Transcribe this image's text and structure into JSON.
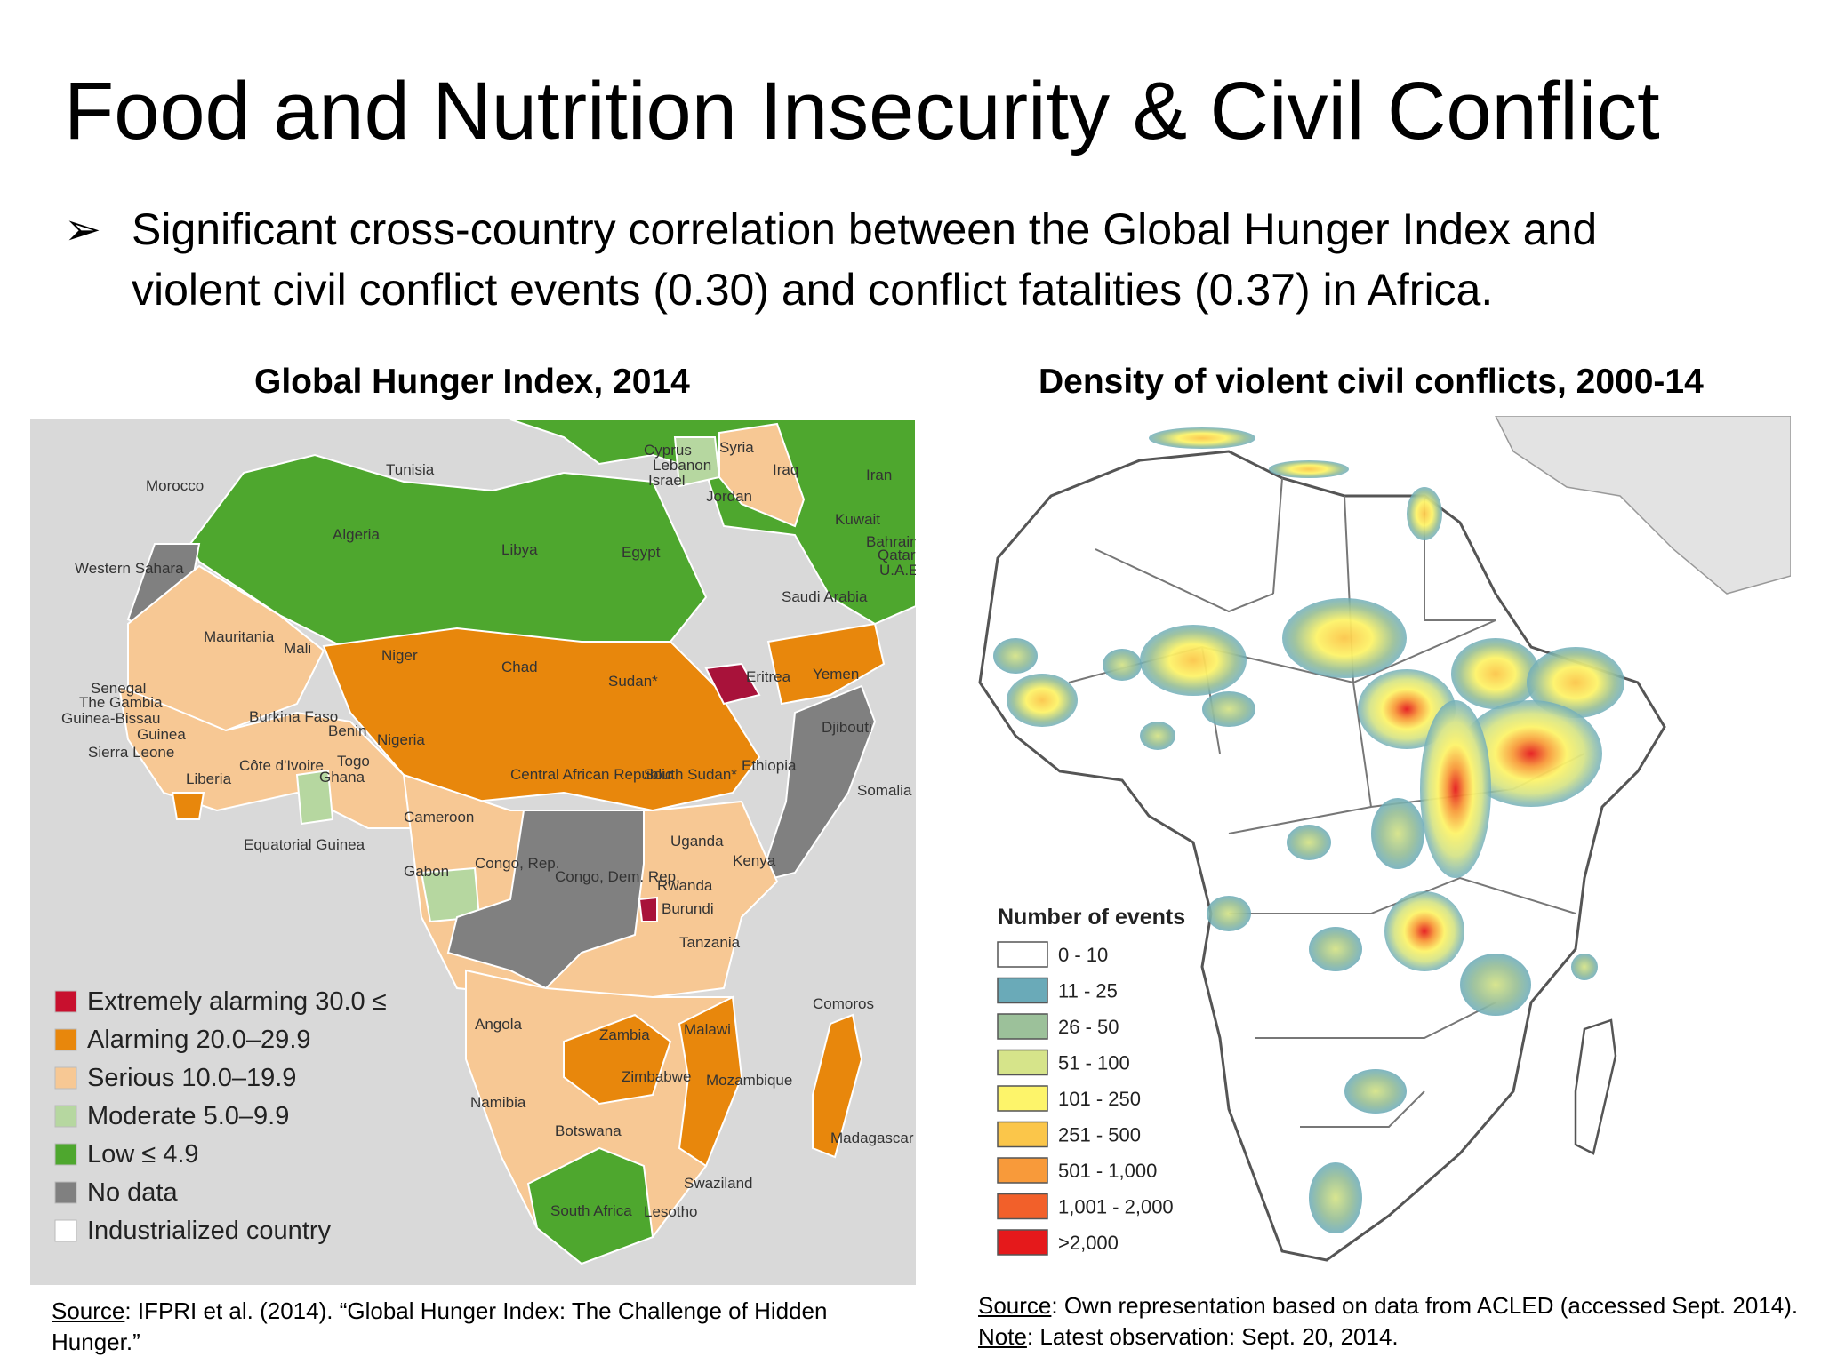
{
  "slide": {
    "title": "Food and Nutrition Insecurity & Civil Conflict",
    "bullet_marker": "➢",
    "bullet_line1": "Significant cross-country correlation between the Global Hunger Index and",
    "bullet_line2": "violent civil conflict events (0.30) and conflict fatalities (0.37) in Africa."
  },
  "left_map": {
    "title": "Global Hunger Index, 2014",
    "colors": {
      "extremely_alarming": "#c8102e",
      "alarming": "#e8870c",
      "serious": "#f7c894",
      "moderate": "#b6d7a0",
      "low": "#4ea72e",
      "no_data": "#808080",
      "industrialized": "#ffffff",
      "sea": "#d9d9d9"
    },
    "legend": [
      {
        "label": "Extremely alarming 30.0 ≤",
        "color": "#c8102e"
      },
      {
        "label": "Alarming 20.0–29.9",
        "color": "#e8870c"
      },
      {
        "label": "Serious 10.0–19.9",
        "color": "#f7c894"
      },
      {
        "label": "Moderate 5.0–9.9",
        "color": "#b6d7a0"
      },
      {
        "label": "Low ≤ 4.9",
        "color": "#4ea72e"
      },
      {
        "label": "No data",
        "color": "#808080"
      },
      {
        "label": "Industrialized country",
        "color": "#ffffff"
      }
    ],
    "country_labels": [
      "Morocco",
      "Tunisia",
      "Cyprus",
      "Lebanon",
      "Israel",
      "Syria",
      "Iraq",
      "Iran",
      "Jordan",
      "Kuwait",
      "Bahrain",
      "Qatar",
      "U.A.E.",
      "Algeria",
      "Libya",
      "Egypt",
      "Saudi Arabia",
      "Western Sahara",
      "Mauritania",
      "Mali",
      "Niger",
      "Chad",
      "Sudan*",
      "Eritrea",
      "Yemen",
      "Senegal",
      "The Gambia",
      "Guinea-Bissau",
      "Guinea",
      "Sierra Leone",
      "Liberia",
      "Burkina Faso",
      "Benin",
      "Togo",
      "Ghana",
      "Côte d'Ivoire",
      "Nigeria",
      "Central African Republic",
      "South Sudan*",
      "Ethiopia",
      "Djibouti",
      "Somalia",
      "Cameroon",
      "Equatorial Guinea",
      "Gabon",
      "Congo, Rep.",
      "Congo, Dem. Rep.",
      "Uganda",
      "Kenya",
      "Rwanda",
      "Burundi",
      "Tanzania",
      "Comoros",
      "Angola",
      "Zambia",
      "Malawi",
      "Mozambique",
      "Zimbabwe",
      "Namibia",
      "Botswana",
      "Madagascar",
      "Swaziland",
      "Lesotho",
      "South Africa"
    ],
    "source_prefix": "Source",
    "source_line1": ": IFPRI et al. (2014). “Global Hunger Index: The Challenge of Hidden",
    "source_line2": "Hunger.”"
  },
  "right_map": {
    "title": "Density of violent civil conflicts, 2000-14",
    "legend_title": "Number of events",
    "legend": [
      {
        "label": "0 - 10",
        "color": "#ffffff"
      },
      {
        "label": "11 - 25",
        "color": "#6aaab8"
      },
      {
        "label": "26 - 50",
        "color": "#9cc19a"
      },
      {
        "label": "51 - 100",
        "color": "#d6e48a"
      },
      {
        "label": "101 - 250",
        "color": "#fdf46a"
      },
      {
        "label": "251 - 500",
        "color": "#fbc64a"
      },
      {
        "label": "501 - 1,000",
        "color": "#f89a3a"
      },
      {
        "label": "1,001 - 2,000",
        "color": "#f2602a"
      },
      {
        "label": ">2,000",
        "color": "#e5191b"
      }
    ],
    "source_prefix": "Source",
    "source_text": ": Own representation based on data from ACLED (accessed Sept. 2014).",
    "note_prefix": "Note",
    "note_text": ": Latest observation: Sept. 20, 2014."
  }
}
